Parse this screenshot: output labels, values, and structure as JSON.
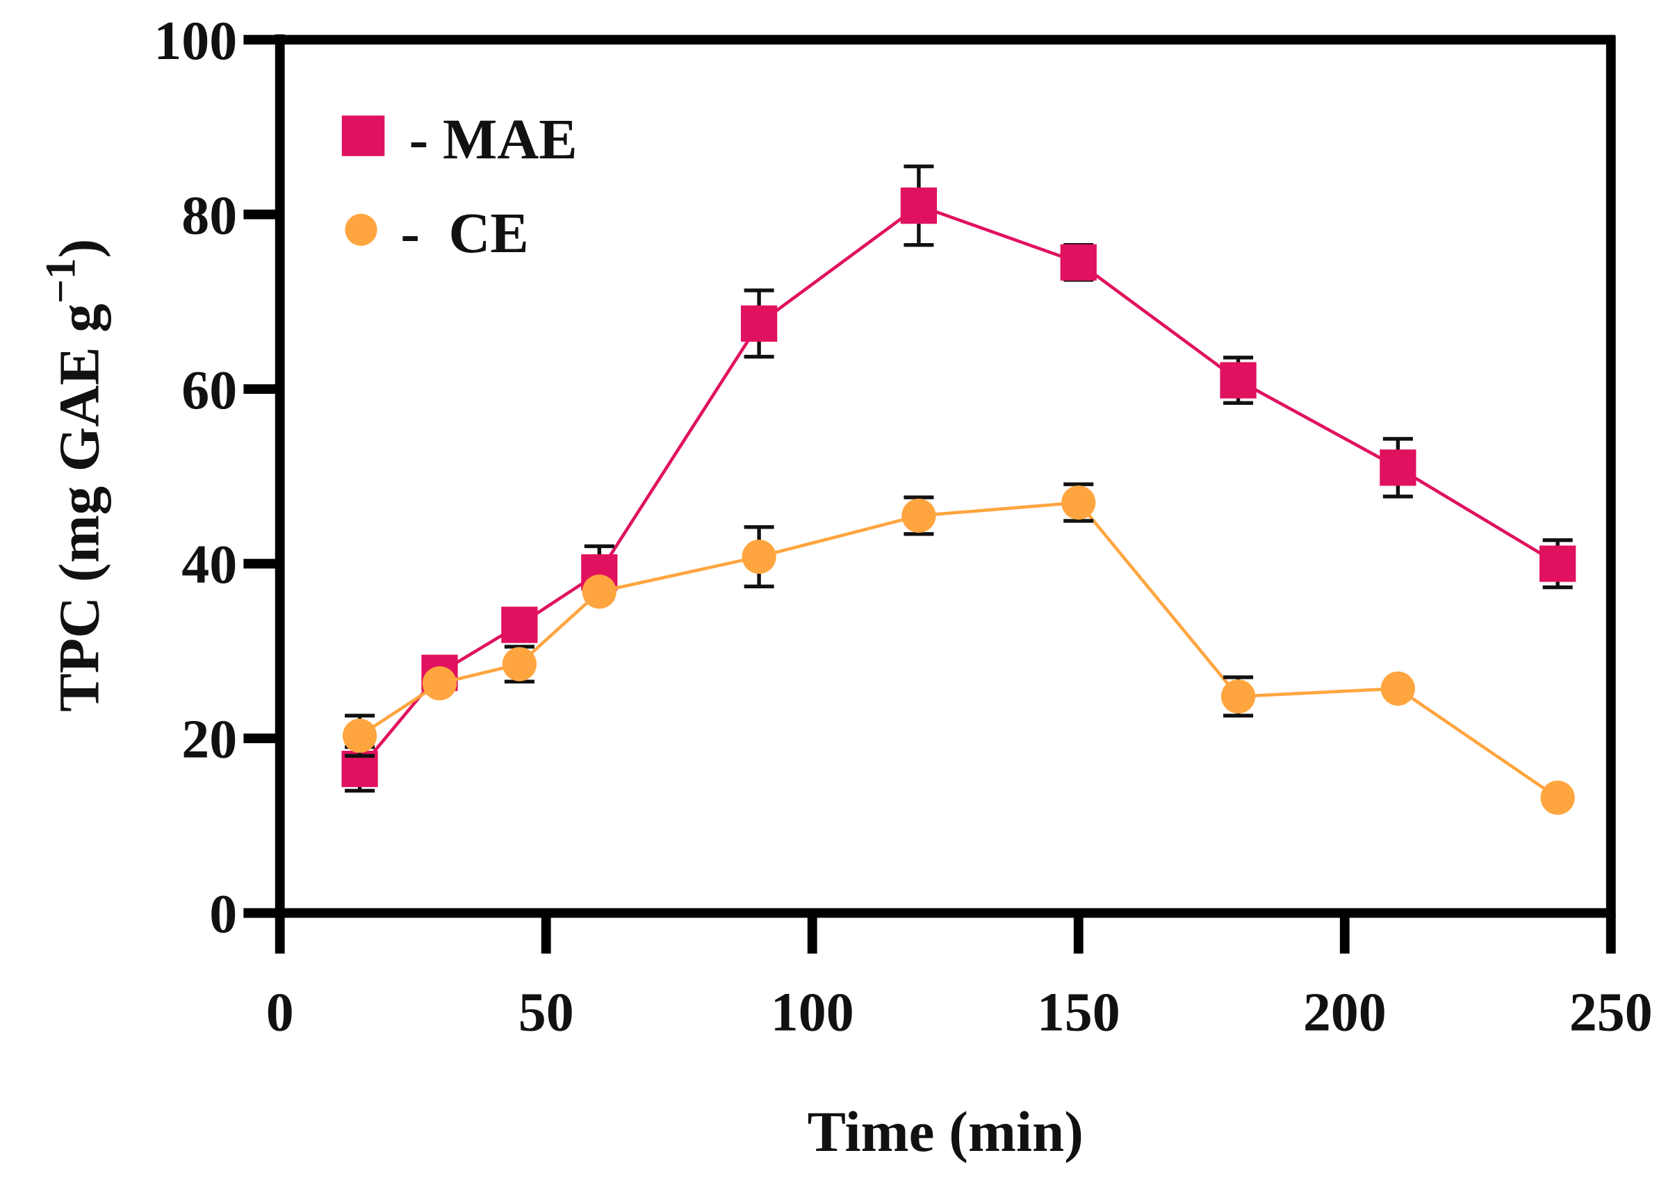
{
  "chart_data": {
    "type": "line",
    "title": "",
    "xlabel": "Time (min)",
    "ylabel_main": "TPC (mg GAE g",
    "ylabel_sup": "−1",
    "ylabel_close": ")",
    "xlim": [
      0,
      250
    ],
    "ylim": [
      0,
      100
    ],
    "xticks": [
      0,
      50,
      100,
      150,
      200,
      250
    ],
    "yticks": [
      0,
      20,
      40,
      60,
      80,
      100
    ],
    "grid": false,
    "legend_position": "top-left",
    "x": [
      15,
      30,
      45,
      60,
      90,
      120,
      150,
      180,
      210,
      240
    ],
    "series": [
      {
        "name": "MAE",
        "legend_label": "- MAE",
        "marker": "square",
        "color": "#E0115F",
        "values": [
          16.5,
          27.5,
          33,
          39,
          67.5,
          81,
          74.5,
          61,
          51,
          40
        ],
        "errors": [
          2.5,
          1,
          1.5,
          3,
          3.8,
          4.5,
          2,
          2.6,
          3.3,
          2.7
        ]
      },
      {
        "name": "CE",
        "legend_label": "-  CE",
        "marker": "circle",
        "color": "#FFA53F",
        "values": [
          20.3,
          26.3,
          28.5,
          36.8,
          40.8,
          45.5,
          47,
          24.8,
          25.7,
          13.2
        ],
        "errors": [
          2.3,
          0.5,
          2,
          0.8,
          3.4,
          2.1,
          2.1,
          2.2,
          0,
          0
        ]
      }
    ]
  }
}
